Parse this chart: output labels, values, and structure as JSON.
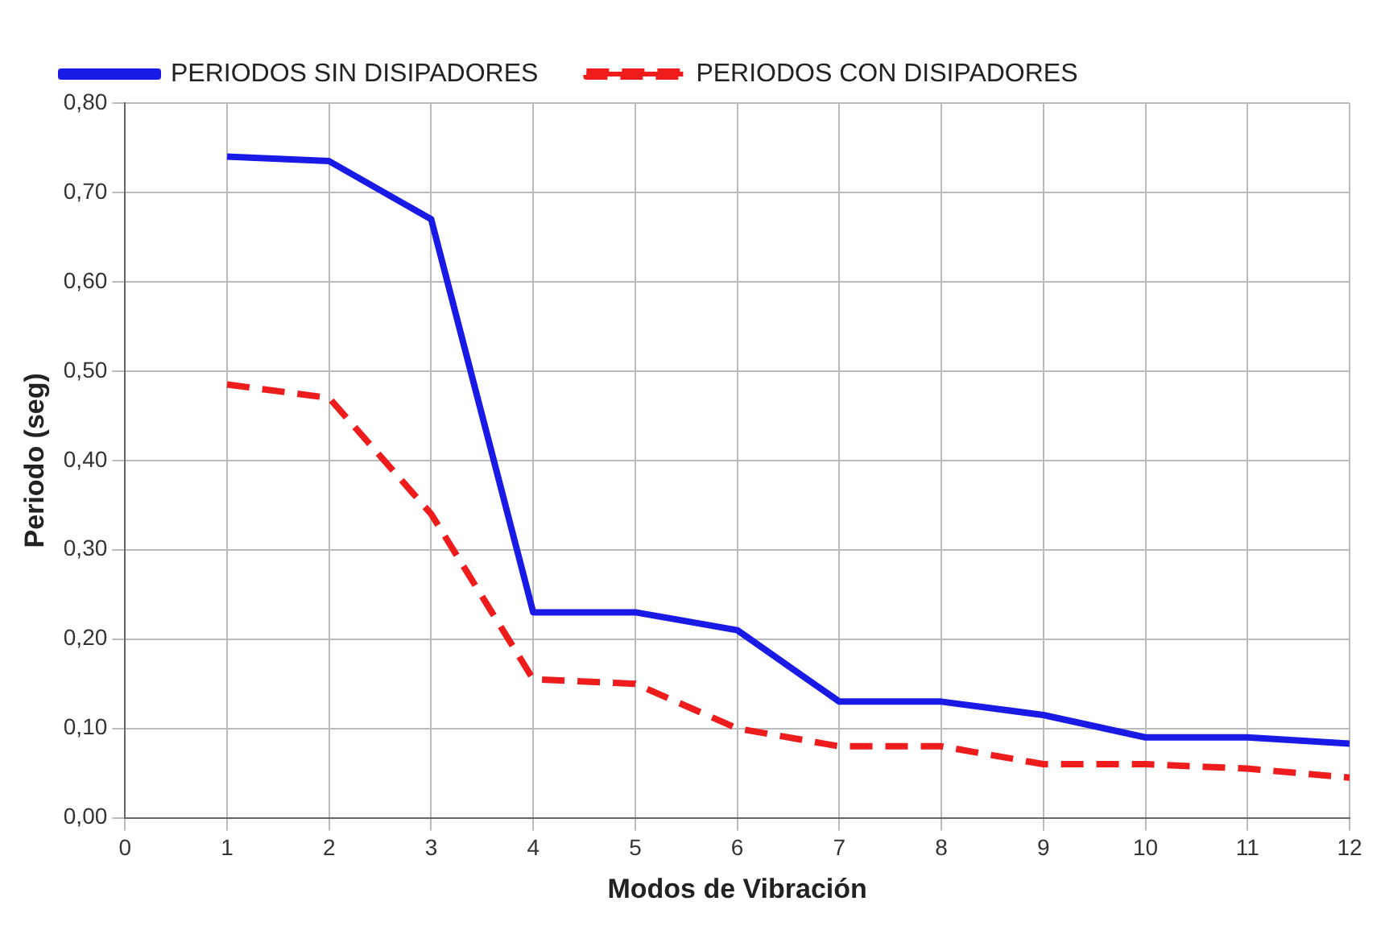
{
  "chart_data": {
    "type": "line",
    "xlabel": "Modos de Vibración",
    "ylabel": "Periodo (seg)",
    "x": [
      1,
      2,
      3,
      4,
      5,
      6,
      7,
      8,
      9,
      10,
      11,
      12
    ],
    "series": [
      {
        "name": "PERIODOS SIN DISIPADORES",
        "color": "#1a1ae6",
        "line_style": "solid",
        "values": [
          0.74,
          0.735,
          0.67,
          0.23,
          0.23,
          0.21,
          0.13,
          0.13,
          0.115,
          0.09,
          0.09,
          0.083
        ]
      },
      {
        "name": "PERIODOS CON DISIPADORES",
        "color": "#ee1c1c",
        "line_style": "dashed",
        "values": [
          0.485,
          0.47,
          0.34,
          0.155,
          0.15,
          0.1,
          0.08,
          0.08,
          0.06,
          0.06,
          0.055,
          0.045
        ]
      }
    ],
    "xlim": [
      0,
      12
    ],
    "xticks": [
      0,
      1,
      2,
      3,
      4,
      5,
      6,
      7,
      8,
      9,
      10,
      11,
      12
    ],
    "ylim": [
      0,
      0.8
    ],
    "yticks": [
      {
        "value": 0,
        "label": "0,00"
      },
      {
        "value": 0.1,
        "label": "0,10"
      },
      {
        "value": 0.2,
        "label": "0,20"
      },
      {
        "value": 0.3,
        "label": "0,30"
      },
      {
        "value": 0.4,
        "label": "0,40"
      },
      {
        "value": 0.5,
        "label": "0,50"
      },
      {
        "value": 0.6,
        "label": "0,60"
      },
      {
        "value": 0.7,
        "label": "0,70"
      },
      {
        "value": 0.8,
        "label": "0,80"
      }
    ],
    "grid": true,
    "legend": "top",
    "marker": "none"
  }
}
